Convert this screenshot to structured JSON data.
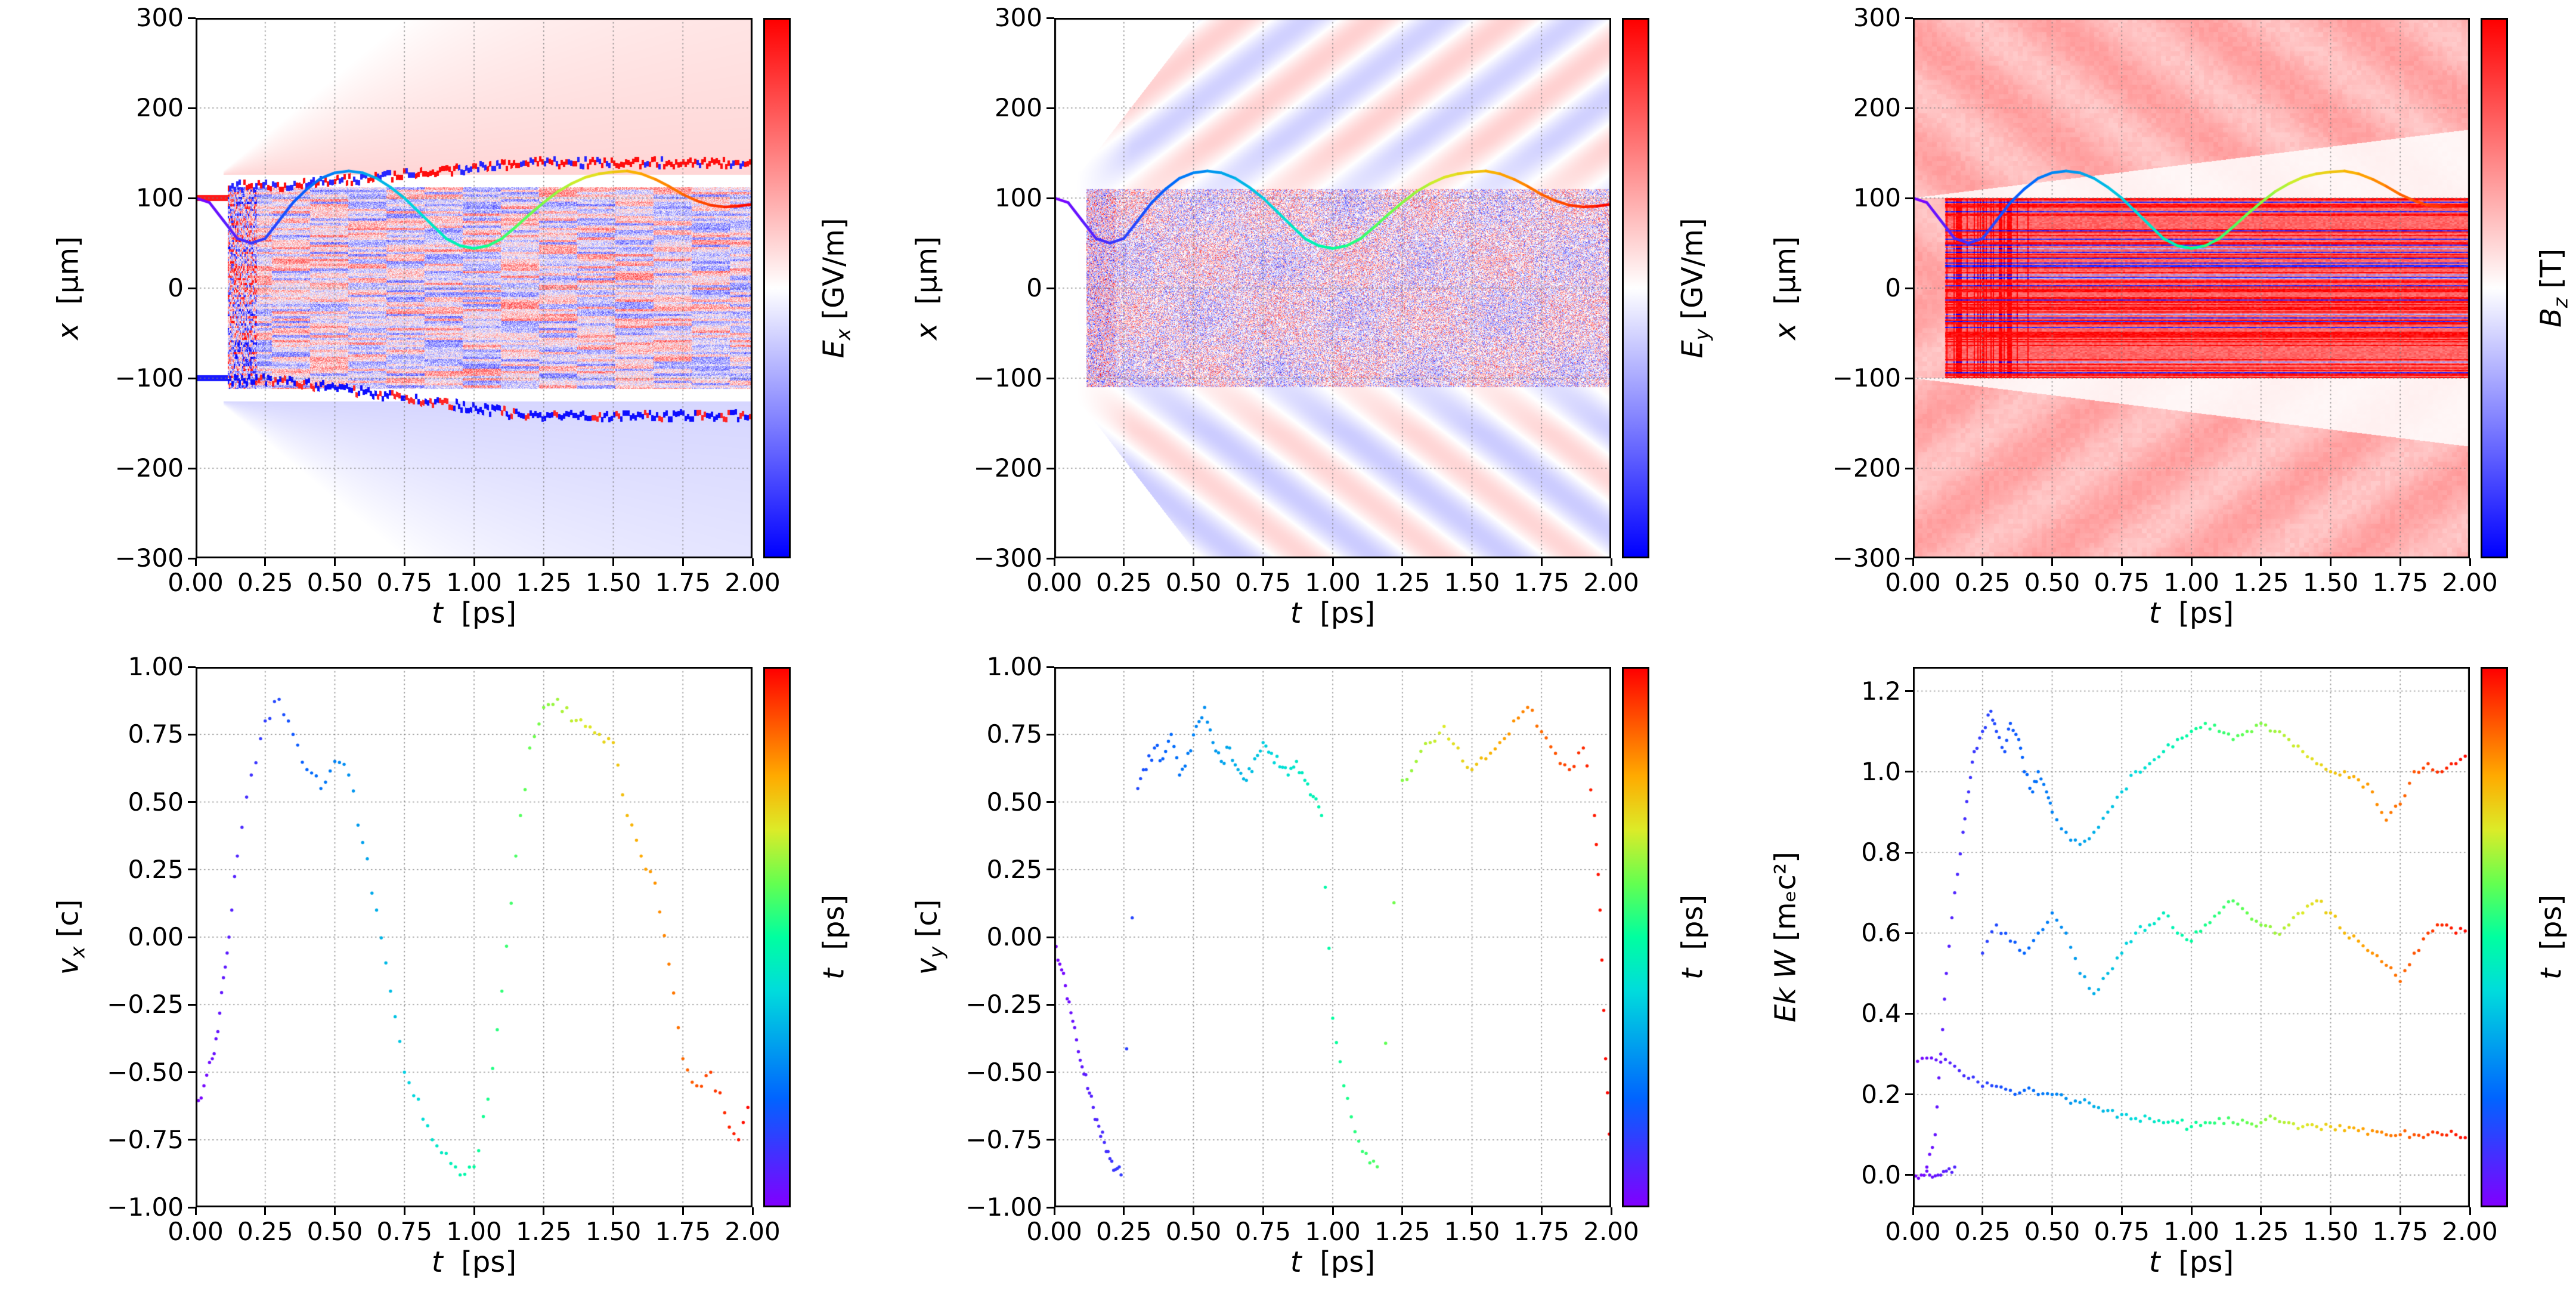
{
  "colors": {
    "background": "#ffffff",
    "grid": "#828282",
    "axis": "#000000",
    "bwr_stops": [
      [
        0,
        "#0000ff"
      ],
      [
        0.5,
        "#ffffff"
      ],
      [
        1,
        "#ff0000"
      ]
    ],
    "rainbow_stops": [
      [
        0,
        "#8000ff"
      ],
      [
        0.2,
        "#0064ff"
      ],
      [
        0.4,
        "#00dcdc"
      ],
      [
        0.5,
        "#00ffa0"
      ],
      [
        0.6,
        "#64ff50"
      ],
      [
        0.7,
        "#dceb28"
      ],
      [
        0.8,
        "#ffaa00"
      ],
      [
        1,
        "#ff0000"
      ]
    ]
  },
  "chart_data": [
    {
      "type": "heatmap",
      "field": "Ex",
      "xlabel": {
        "main": "t",
        "sub": "",
        "unit": "  [ps]"
      },
      "ylabel": {
        "main": "x",
        "sub": "",
        "unit": "  [μm]"
      },
      "xlim": [
        0,
        2
      ],
      "ylim": [
        -300,
        300
      ],
      "xticks": [
        "0.00",
        "0.25",
        "0.50",
        "0.75",
        "1.00",
        "1.25",
        "1.50",
        "1.75",
        "2.00"
      ],
      "yticks": [
        "300",
        "200",
        "100",
        "0",
        "−100",
        "−200",
        "−300"
      ],
      "grid": true,
      "colorbar": {
        "colormap": "bwr",
        "label": {
          "main": "E",
          "sub": "x",
          "unit": " [GV/m]"
        }
      },
      "heatmap": {
        "band_halfwidth": 112,
        "band_start_t": 0.115,
        "haze_start_t": 0.1,
        "haze_slope": 260,
        "description": "Diverging red/blue Ex field map: faint red radiation wedge expanding above x≈+130 μm, faint blue wedge below x≈−130 μm, dense red/blue speckle band with horizontal streaks for |x|<110 μm starting at t≈0.12 ps, jagged red/blue sheath boundary near x≈+112→+140 μm and blue boundary near x≈−102→−145 μm"
      },
      "trajectory": {
        "colormap": "rainbow",
        "t": [
          0,
          0.05,
          0.1,
          0.15,
          0.2,
          0.25,
          0.3,
          0.35,
          0.4,
          0.45,
          0.5,
          0.55,
          0.6,
          0.65,
          0.7,
          0.75,
          0.8,
          0.85,
          0.9,
          0.95,
          1,
          1.05,
          1.1,
          1.15,
          1.2,
          1.25,
          1.3,
          1.35,
          1.4,
          1.45,
          1.5,
          1.55,
          1.6,
          1.65,
          1.7,
          1.75,
          1.8,
          1.85,
          1.9,
          1.95,
          2
        ],
        "x": [
          100,
          95,
          75,
          55,
          50,
          55,
          75,
          95,
          110,
          122,
          128,
          130,
          128,
          122,
          112,
          100,
          85,
          70,
          55,
          47,
          44,
          47,
          55,
          68,
          82,
          95,
          107,
          116,
          123,
          127,
          129,
          130,
          127,
          121,
          113,
          104,
          97,
          92,
          90,
          91,
          93
        ]
      }
    },
    {
      "type": "heatmap",
      "field": "Ey",
      "xlabel": {
        "main": "t",
        "sub": "",
        "unit": "  [ps]"
      },
      "ylabel": {
        "main": "x",
        "sub": "",
        "unit": "  [μm]"
      },
      "xlim": [
        0,
        2
      ],
      "ylim": [
        -300,
        300
      ],
      "xticks": [
        "0.00",
        "0.25",
        "0.50",
        "0.75",
        "1.00",
        "1.25",
        "1.50",
        "1.75",
        "2.00"
      ],
      "yticks": [
        "300",
        "200",
        "100",
        "0",
        "−100",
        "−200",
        "−300"
      ],
      "grid": true,
      "colorbar": {
        "colormap": "bwr",
        "label": {
          "main": "E",
          "sub": "y",
          "unit": " [GV/m]"
        }
      },
      "heatmap": {
        "band_halfwidth": 110,
        "band_start_t": 0.115,
        "fan_slope": 400,
        "description": "Laser field Ey: alternating red/blue diagonal stripes fanning up-right above x≈+100 μm and down-right below x≈−100 μm from t≈0.1 ps, light grainy red/blue speckle inside |x|<110 μm"
      },
      "trajectory": {
        "colormap": "rainbow",
        "t": [
          0,
          0.05,
          0.1,
          0.15,
          0.2,
          0.25,
          0.3,
          0.35,
          0.4,
          0.45,
          0.5,
          0.55,
          0.6,
          0.65,
          0.7,
          0.75,
          0.8,
          0.85,
          0.9,
          0.95,
          1,
          1.05,
          1.1,
          1.15,
          1.2,
          1.25,
          1.3,
          1.35,
          1.4,
          1.45,
          1.5,
          1.55,
          1.6,
          1.65,
          1.7,
          1.75,
          1.8,
          1.85,
          1.9,
          1.95,
          2
        ],
        "x": [
          100,
          95,
          75,
          55,
          50,
          55,
          75,
          95,
          110,
          122,
          128,
          130,
          128,
          122,
          112,
          100,
          85,
          70,
          55,
          47,
          44,
          47,
          55,
          68,
          82,
          95,
          107,
          116,
          123,
          127,
          129,
          130,
          127,
          121,
          113,
          104,
          97,
          92,
          90,
          91,
          93
        ]
      }
    },
    {
      "type": "heatmap",
      "field": "Bz",
      "xlabel": {
        "main": "t",
        "sub": "",
        "unit": "  [ps]"
      },
      "ylabel": {
        "main": "x",
        "sub": "",
        "unit": "  [μm]"
      },
      "xlim": [
        0,
        2
      ],
      "ylim": [
        -300,
        300
      ],
      "xticks": [
        "0.00",
        "0.25",
        "0.50",
        "0.75",
        "1.00",
        "1.25",
        "1.50",
        "1.75",
        "2.00"
      ],
      "yticks": [
        "300",
        "200",
        "100",
        "0",
        "−100",
        "−200",
        "−300"
      ],
      "grid": true,
      "colorbar": {
        "colormap": "bwr",
        "label": {
          "main": "B",
          "sub": "z",
          "unit": " [T]"
        }
      },
      "heatmap": {
        "band_halfwidth": 100,
        "band_start_t": 0.115,
        "wedge_slope": 38,
        "base_value": 0.3,
        "description": "Bz field: whole domain light red with faint diagonal striping, nearly white wedges just outside |x|≈100 μm widening with t, dense dark red band with many fine dark-blue horizontal line filaments for |x|<100 μm starting at t≈0.12 ps"
      },
      "trajectory": {
        "colormap": "rainbow",
        "t": [
          0,
          0.05,
          0.1,
          0.15,
          0.2,
          0.25,
          0.3,
          0.35,
          0.4,
          0.45,
          0.5,
          0.55,
          0.6,
          0.65,
          0.7,
          0.75,
          0.8,
          0.85,
          0.9,
          0.95,
          1,
          1.05,
          1.1,
          1.15,
          1.2,
          1.25,
          1.3,
          1.35,
          1.4,
          1.45,
          1.5,
          1.55,
          1.6,
          1.65,
          1.7,
          1.75,
          1.8,
          1.85,
          1.9,
          1.95,
          2
        ],
        "x": [
          100,
          95,
          75,
          55,
          50,
          55,
          75,
          95,
          110,
          122,
          128,
          130,
          128,
          122,
          112,
          100,
          85,
          70,
          55,
          47,
          44,
          47,
          55,
          68,
          82,
          95,
          107,
          116,
          123,
          127,
          129,
          130,
          127,
          121,
          113,
          104,
          97,
          92,
          90,
          91,
          93
        ]
      }
    },
    {
      "type": "scatter",
      "xlabel": {
        "main": "t",
        "sub": "",
        "unit": "  [ps]"
      },
      "ylabel": {
        "main": "v",
        "sub": "x",
        "unit": " [c]"
      },
      "xlim": [
        0,
        2
      ],
      "ylim": [
        -1,
        1
      ],
      "xticks": [
        "0.00",
        "0.25",
        "0.50",
        "0.75",
        "1.00",
        "1.25",
        "1.50",
        "1.75",
        "2.00"
      ],
      "yticks": [
        "1.00",
        "0.75",
        "0.50",
        "0.25",
        "0.00",
        "−0.25",
        "−0.50",
        "−0.75",
        "−1.00"
      ],
      "grid": true,
      "jitter": 0.05,
      "colorbar": {
        "colormap": "rainbow",
        "label": {
          "main": "t",
          "sub": "",
          "unit": "  [ps]"
        }
      },
      "series": [
        {
          "name": "vx",
          "t": [
            0,
            0.03,
            0.06,
            0.08,
            0.1,
            0.12,
            0.15,
            0.2,
            0.25,
            0.3,
            0.35,
            0.4,
            0.45,
            0.5,
            0.55,
            0.6,
            0.65,
            0.7,
            0.75,
            0.8,
            0.85,
            0.9,
            0.95,
            1,
            1.05,
            1.1,
            1.15,
            1.2,
            1.25,
            1.3,
            1.35,
            1.4,
            1.45,
            1.5,
            1.55,
            1.6,
            1.65,
            1.7,
            1.75,
            1.8,
            1.85,
            1.9,
            1.95,
            2
          ],
          "v": [
            -0.65,
            -0.55,
            -0.45,
            -0.35,
            -0.15,
            0,
            0.3,
            0.6,
            0.8,
            0.88,
            0.75,
            0.62,
            0.55,
            0.65,
            0.6,
            0.35,
            0.1,
            -0.2,
            -0.5,
            -0.6,
            -0.75,
            -0.8,
            -0.88,
            -0.85,
            -0.6,
            -0.2,
            0.3,
            0.7,
            0.85,
            0.88,
            0.8,
            0.78,
            0.75,
            0.72,
            0.45,
            0.3,
            0.2,
            -0.1,
            -0.45,
            -0.55,
            -0.5,
            -0.65,
            -0.75,
            -0.6
          ]
        }
      ]
    },
    {
      "type": "scatter",
      "xlabel": {
        "main": "t",
        "sub": "",
        "unit": "  [ps]"
      },
      "ylabel": {
        "main": "v",
        "sub": "y",
        "unit": " [c]"
      },
      "xlim": [
        0,
        2
      ],
      "ylim": [
        -1,
        1
      ],
      "xticks": [
        "0.00",
        "0.25",
        "0.50",
        "0.75",
        "1.00",
        "1.25",
        "1.50",
        "1.75",
        "2.00"
      ],
      "yticks": [
        "1.00",
        "0.75",
        "0.50",
        "0.25",
        "0.00",
        "−0.25",
        "−0.50",
        "−0.75",
        "−1.00"
      ],
      "grid": true,
      "jitter": 0.05,
      "colorbar": {
        "colormap": "rainbow",
        "label": {
          "main": "t",
          "sub": "",
          "unit": "  [ps]"
        }
      },
      "series": [
        {
          "name": "vy",
          "t": [
            0,
            0.02,
            0.04,
            0.06,
            0.08,
            0.1,
            0.12,
            0.14,
            0.16,
            0.18,
            0.2,
            0.22,
            0.24,
            0.3,
            0.33,
            0.36,
            0.39,
            0.42,
            0.45,
            0.48,
            0.51,
            0.54,
            0.57,
            0.6,
            0.63,
            0.66,
            0.69,
            0.72,
            0.75,
            0.78,
            0.81,
            0.84,
            0.87,
            0.9,
            0.93,
            0.96,
            1,
            1.04,
            1.08,
            1.12,
            1.16,
            1.25,
            1.3,
            1.35,
            1.4,
            1.45,
            1.5,
            1.55,
            1.6,
            1.65,
            1.7,
            1.75,
            1.8,
            1.85,
            1.9,
            1.94,
            1.96,
            1.98,
            2
          ],
          "v": [
            -0.02,
            -0.1,
            -0.18,
            -0.28,
            -0.38,
            -0.48,
            -0.56,
            -0.63,
            -0.7,
            -0.76,
            -0.82,
            -0.86,
            -0.88,
            0.55,
            0.62,
            0.7,
            0.66,
            0.75,
            0.6,
            0.68,
            0.78,
            0.85,
            0.72,
            0.65,
            0.7,
            0.62,
            0.58,
            0.66,
            0.72,
            0.68,
            0.63,
            0.6,
            0.65,
            0.58,
            0.52,
            0.45,
            -0.3,
            -0.55,
            -0.72,
            -0.8,
            -0.85,
            0.58,
            0.65,
            0.72,
            0.78,
            0.7,
            0.62,
            0.66,
            0.72,
            0.8,
            0.85,
            0.76,
            0.68,
            0.62,
            0.7,
            0.45,
            0.1,
            -0.45,
            -0.88
          ]
        }
      ]
    },
    {
      "type": "scatter",
      "xlabel": {
        "main": "t",
        "sub": "",
        "unit": "  [ps]"
      },
      "ylabel": {
        "main": "Ek W",
        "sub": "",
        "unit": " [mₑc²]"
      },
      "xlim": [
        0,
        2
      ],
      "ylim": [
        -0.08,
        1.26
      ],
      "xticks": [
        "0.00",
        "0.25",
        "0.50",
        "0.75",
        "1.00",
        "1.25",
        "1.50",
        "1.75",
        "2.00"
      ],
      "yticks": [
        "1.2",
        "1.0",
        "0.8",
        "0.6",
        "0.4",
        "0.2",
        "0.0"
      ],
      "grid": true,
      "jitter": 0.02,
      "colorbar": {
        "colormap": "rainbow",
        "label": {
          "main": "t",
          "sub": "",
          "unit": "  [ps]"
        }
      },
      "series": [
        {
          "name": "high-energy-branch",
          "t": [
            0.05,
            0.08,
            0.1,
            0.12,
            0.15,
            0.18,
            0.2,
            0.22,
            0.25,
            0.28,
            0.3,
            0.33,
            0.35,
            0.38,
            0.4,
            0.43,
            0.45,
            0.48,
            0.5,
            0.55,
            0.6,
            0.65,
            0.7,
            0.75,
            0.8,
            0.85,
            0.9,
            0.95,
            1,
            1.05,
            1.1,
            1.15,
            1.2,
            1.25,
            1.3,
            1.35,
            1.4,
            1.45,
            1.5,
            1.55,
            1.6,
            1.65,
            1.7,
            1.75,
            1.8,
            1.85,
            1.9,
            1.95,
            2
          ],
          "v": [
            0.02,
            0.1,
            0.3,
            0.5,
            0.7,
            0.85,
            0.95,
            1.05,
            1.1,
            1.15,
            1.1,
            1.05,
            1.12,
            1.08,
            1,
            0.95,
            1,
            0.95,
            0.9,
            0.85,
            0.82,
            0.85,
            0.9,
            0.95,
            1,
            1.02,
            1.05,
            1.08,
            1.1,
            1.12,
            1.1,
            1.08,
            1.1,
            1.12,
            1.1,
            1.08,
            1.05,
            1.02,
            1,
            1,
            0.98,
            0.95,
            0.88,
            0.92,
            1,
            1.02,
            1,
            1.02,
            1.05
          ]
        },
        {
          "name": "mid-energy-branch",
          "t": [
            0.25,
            0.3,
            0.35,
            0.4,
            0.45,
            0.5,
            0.55,
            0.6,
            0.65,
            0.7,
            0.75,
            0.8,
            0.85,
            0.9,
            0.95,
            1,
            1.05,
            1.1,
            1.15,
            1.2,
            1.25,
            1.3,
            1.35,
            1.4,
            1.45,
            1.5,
            1.55,
            1.6,
            1.65,
            1.7,
            1.75,
            1.8,
            1.85,
            1.9,
            1.95,
            2
          ],
          "v": [
            0.55,
            0.62,
            0.58,
            0.55,
            0.6,
            0.65,
            0.6,
            0.5,
            0.45,
            0.5,
            0.55,
            0.6,
            0.62,
            0.65,
            0.6,
            0.58,
            0.62,
            0.65,
            0.68,
            0.65,
            0.62,
            0.6,
            0.62,
            0.65,
            0.68,
            0.65,
            0.6,
            0.58,
            0.55,
            0.52,
            0.48,
            0.55,
            0.6,
            0.62,
            0.6,
            0.62
          ]
        },
        {
          "name": "decaying-branch",
          "t": [
            0,
            0.05,
            0.1,
            0.15,
            0.2,
            0.25,
            0.3,
            0.35,
            0.4,
            0.45,
            0.5,
            0.55,
            0.6,
            0.65,
            0.7,
            0.75,
            0.8,
            0.85,
            0.9,
            0.95,
            1,
            1.05,
            1.1,
            1.15,
            1.2,
            1.25,
            1.3,
            1.35,
            1.4,
            1.45,
            1.5,
            1.55,
            1.6,
            1.65,
            1.7,
            1.75,
            1.8,
            1.85,
            1.9,
            1.95,
            2
          ],
          "v": [
            0.29,
            0.29,
            0.28,
            0.27,
            0.24,
            0.22,
            0.22,
            0.21,
            0.21,
            0.2,
            0.2,
            0.19,
            0.18,
            0.17,
            0.16,
            0.15,
            0.14,
            0.14,
            0.13,
            0.13,
            0.12,
            0.13,
            0.14,
            0.13,
            0.13,
            0.13,
            0.14,
            0.13,
            0.12,
            0.12,
            0.12,
            0.11,
            0.11,
            0.11,
            0.1,
            0.1,
            0.1,
            0.1,
            0.1,
            0.1,
            0.1
          ]
        },
        {
          "name": "initial-zero-branch",
          "t": [
            0,
            0.03,
            0.06,
            0.09,
            0.12,
            0.15
          ],
          "v": [
            0,
            0,
            0,
            0,
            0.01,
            0.02
          ]
        }
      ]
    }
  ]
}
